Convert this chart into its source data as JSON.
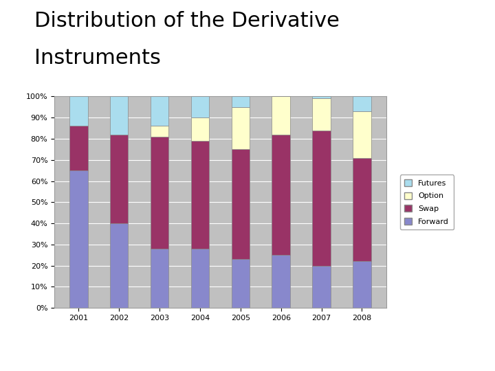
{
  "title_line1": "Distribution of the Derivative",
  "title_line2": "Instruments",
  "years": [
    "2001",
    "2002",
    "2003",
    "2004",
    "2005",
    "2006",
    "2007",
    "2008"
  ],
  "forward": [
    65,
    40,
    28,
    28,
    23,
    25,
    20,
    22
  ],
  "swap": [
    21,
    42,
    53,
    51,
    52,
    57,
    64,
    49
  ],
  "option": [
    0,
    0,
    5,
    11,
    20,
    18,
    15,
    22
  ],
  "futures": [
    14,
    18,
    14,
    10,
    5,
    0,
    1,
    7
  ],
  "colors": {
    "forward": "#8888cc",
    "swap": "#993366",
    "option": "#ffffcc",
    "futures": "#aaddee"
  },
  "ylim": [
    0,
    100
  ],
  "yticks": [
    0,
    10,
    20,
    30,
    40,
    50,
    60,
    70,
    80,
    90,
    100
  ],
  "ytick_labels": [
    "0%",
    "10%",
    "20%",
    "30%",
    "40%",
    "50%",
    "60%",
    "70%",
    "80%",
    "90%",
    "100%"
  ],
  "background_color": "#c0c0c0",
  "figure_background": "#ffffff",
  "grid_color": "#ffffff",
  "bar_width": 0.45,
  "bar_edge_color": "#888888",
  "title_fontsize": 22,
  "axis_fontsize": 8
}
